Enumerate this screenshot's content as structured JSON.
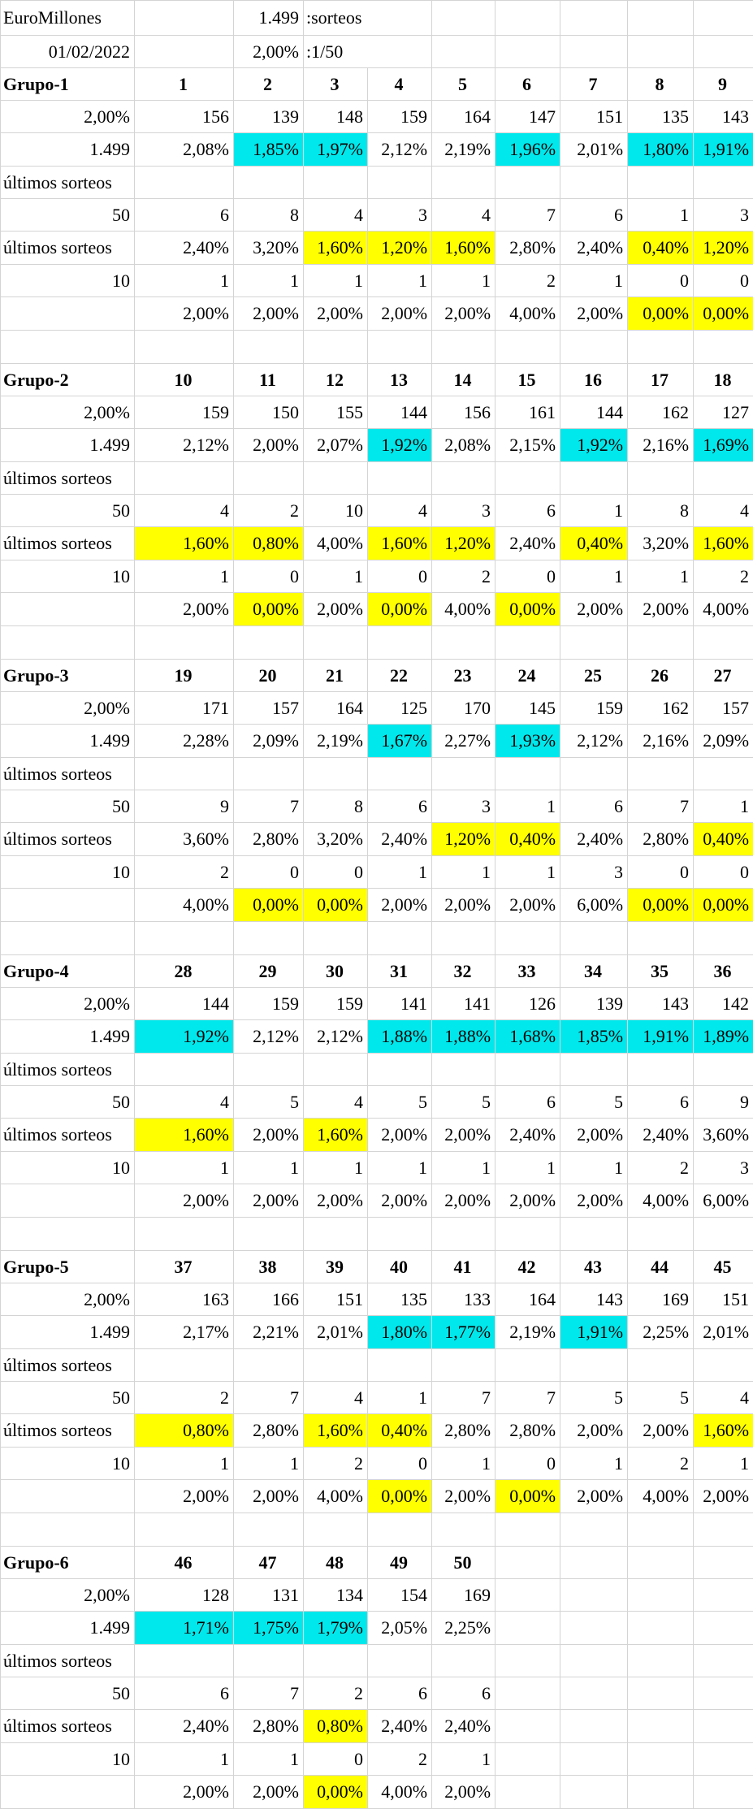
{
  "header": {
    "app_name": "EuroMillones",
    "date": "01/02/2022",
    "draws_count": "1.499",
    "draws_label": ":sorteos",
    "base_pct": "2,00%",
    "ratio_label": ":1/50"
  },
  "labels": {
    "group_prefix": "Grupo-",
    "base_pct": "2,00%",
    "total_draws": "1.499",
    "last_draws": "últimos sorteos",
    "n50": "50",
    "n10": "10"
  },
  "colors": {
    "number_red": "#e00000",
    "highlight_low": "#00e8ec",
    "highlight_zero": "#ffff00"
  },
  "groups": [
    {
      "name": "Grupo-1",
      "numbers": [
        "1",
        "2",
        "3",
        "4",
        "5",
        "6",
        "7",
        "8",
        "9"
      ],
      "counts_total": [
        "156",
        "139",
        "148",
        "159",
        "164",
        "147",
        "151",
        "135",
        "143"
      ],
      "pct_total": [
        "2,08%",
        "1,85%",
        "1,97%",
        "2,12%",
        "2,19%",
        "1,96%",
        "2,01%",
        "1,80%",
        "1,91%"
      ],
      "pct_total_hl": [
        "",
        "c",
        "c",
        "",
        "",
        "c",
        "",
        "c",
        "c"
      ],
      "counts_50": [
        "6",
        "8",
        "4",
        "3",
        "4",
        "7",
        "6",
        "1",
        "3"
      ],
      "pct_50": [
        "2,40%",
        "3,20%",
        "1,60%",
        "1,20%",
        "1,60%",
        "2,80%",
        "2,40%",
        "0,40%",
        "1,20%"
      ],
      "pct_50_hl": [
        "",
        "",
        "y",
        "y",
        "y",
        "",
        "",
        "y",
        "y"
      ],
      "counts_10": [
        "1",
        "1",
        "1",
        "1",
        "1",
        "2",
        "1",
        "0",
        "0"
      ],
      "pct_10": [
        "2,00%",
        "2,00%",
        "2,00%",
        "2,00%",
        "2,00%",
        "4,00%",
        "2,00%",
        "0,00%",
        "0,00%"
      ],
      "pct_10_hl": [
        "",
        "",
        "",
        "",
        "",
        "",
        "",
        "y",
        "y"
      ]
    },
    {
      "name": "Grupo-2",
      "numbers": [
        "10",
        "11",
        "12",
        "13",
        "14",
        "15",
        "16",
        "17",
        "18"
      ],
      "counts_total": [
        "159",
        "150",
        "155",
        "144",
        "156",
        "161",
        "144",
        "162",
        "127"
      ],
      "pct_total": [
        "2,12%",
        "2,00%",
        "2,07%",
        "1,92%",
        "2,08%",
        "2,15%",
        "1,92%",
        "2,16%",
        "1,69%"
      ],
      "pct_total_hl": [
        "",
        "",
        "",
        "c",
        "",
        "",
        "c",
        "",
        "c"
      ],
      "counts_50": [
        "4",
        "2",
        "10",
        "4",
        "3",
        "6",
        "1",
        "8",
        "4"
      ],
      "pct_50": [
        "1,60%",
        "0,80%",
        "4,00%",
        "1,60%",
        "1,20%",
        "2,40%",
        "0,40%",
        "3,20%",
        "1,60%"
      ],
      "pct_50_hl": [
        "y",
        "y",
        "",
        "y",
        "y",
        "",
        "y",
        "",
        "y"
      ],
      "counts_10": [
        "1",
        "0",
        "1",
        "0",
        "2",
        "0",
        "1",
        "1",
        "2"
      ],
      "pct_10": [
        "2,00%",
        "0,00%",
        "2,00%",
        "0,00%",
        "4,00%",
        "0,00%",
        "2,00%",
        "2,00%",
        "4,00%"
      ],
      "pct_10_hl": [
        "",
        "y",
        "",
        "y",
        "",
        "y",
        "",
        "",
        ""
      ]
    },
    {
      "name": "Grupo-3",
      "numbers": [
        "19",
        "20",
        "21",
        "22",
        "23",
        "24",
        "25",
        "26",
        "27"
      ],
      "counts_total": [
        "171",
        "157",
        "164",
        "125",
        "170",
        "145",
        "159",
        "162",
        "157"
      ],
      "pct_total": [
        "2,28%",
        "2,09%",
        "2,19%",
        "1,67%",
        "2,27%",
        "1,93%",
        "2,12%",
        "2,16%",
        "2,09%"
      ],
      "pct_total_hl": [
        "",
        "",
        "",
        "c",
        "",
        "c",
        "",
        "",
        ""
      ],
      "counts_50": [
        "9",
        "7",
        "8",
        "6",
        "3",
        "1",
        "6",
        "7",
        "1"
      ],
      "pct_50": [
        "3,60%",
        "2,80%",
        "3,20%",
        "2,40%",
        "1,20%",
        "0,40%",
        "2,40%",
        "2,80%",
        "0,40%"
      ],
      "pct_50_hl": [
        "",
        "",
        "",
        "",
        "y",
        "y",
        "",
        "",
        "y"
      ],
      "counts_10": [
        "2",
        "0",
        "0",
        "1",
        "1",
        "1",
        "3",
        "0",
        "0"
      ],
      "pct_10": [
        "4,00%",
        "0,00%",
        "0,00%",
        "2,00%",
        "2,00%",
        "2,00%",
        "6,00%",
        "0,00%",
        "0,00%"
      ],
      "pct_10_hl": [
        "",
        "y",
        "y",
        "",
        "",
        "",
        "",
        "y",
        "y"
      ]
    },
    {
      "name": "Grupo-4",
      "numbers": [
        "28",
        "29",
        "30",
        "31",
        "32",
        "33",
        "34",
        "35",
        "36"
      ],
      "counts_total": [
        "144",
        "159",
        "159",
        "141",
        "141",
        "126",
        "139",
        "143",
        "142"
      ],
      "pct_total": [
        "1,92%",
        "2,12%",
        "2,12%",
        "1,88%",
        "1,88%",
        "1,68%",
        "1,85%",
        "1,91%",
        "1,89%"
      ],
      "pct_total_hl": [
        "c",
        "",
        "",
        "c",
        "c",
        "c",
        "c",
        "c",
        "c"
      ],
      "counts_50": [
        "4",
        "5",
        "4",
        "5",
        "5",
        "6",
        "5",
        "6",
        "9"
      ],
      "pct_50": [
        "1,60%",
        "2,00%",
        "1,60%",
        "2,00%",
        "2,00%",
        "2,40%",
        "2,00%",
        "2,40%",
        "3,60%"
      ],
      "pct_50_hl": [
        "y",
        "",
        "y",
        "",
        "",
        "",
        "",
        "",
        ""
      ],
      "counts_10": [
        "1",
        "1",
        "1",
        "1",
        "1",
        "1",
        "1",
        "2",
        "3"
      ],
      "pct_10": [
        "2,00%",
        "2,00%",
        "2,00%",
        "2,00%",
        "2,00%",
        "2,00%",
        "2,00%",
        "4,00%",
        "6,00%"
      ],
      "pct_10_hl": [
        "",
        "",
        "",
        "",
        "",
        "",
        "",
        "",
        ""
      ]
    },
    {
      "name": "Grupo-5",
      "numbers": [
        "37",
        "38",
        "39",
        "40",
        "41",
        "42",
        "43",
        "44",
        "45"
      ],
      "counts_total": [
        "163",
        "166",
        "151",
        "135",
        "133",
        "164",
        "143",
        "169",
        "151"
      ],
      "pct_total": [
        "2,17%",
        "2,21%",
        "2,01%",
        "1,80%",
        "1,77%",
        "2,19%",
        "1,91%",
        "2,25%",
        "2,01%"
      ],
      "pct_total_hl": [
        "",
        "",
        "",
        "c",
        "c",
        "",
        "c",
        "",
        ""
      ],
      "counts_50": [
        "2",
        "7",
        "4",
        "1",
        "7",
        "7",
        "5",
        "5",
        "4"
      ],
      "pct_50": [
        "0,80%",
        "2,80%",
        "1,60%",
        "0,40%",
        "2,80%",
        "2,80%",
        "2,00%",
        "2,00%",
        "1,60%"
      ],
      "pct_50_hl": [
        "y",
        "",
        "y",
        "y",
        "",
        "",
        "",
        "",
        "y"
      ],
      "counts_10": [
        "1",
        "1",
        "2",
        "0",
        "1",
        "0",
        "1",
        "2",
        "1"
      ],
      "pct_10": [
        "2,00%",
        "2,00%",
        "4,00%",
        "0,00%",
        "2,00%",
        "0,00%",
        "2,00%",
        "4,00%",
        "2,00%"
      ],
      "pct_10_hl": [
        "",
        "",
        "",
        "y",
        "",
        "y",
        "",
        "",
        ""
      ]
    },
    {
      "name": "Grupo-6",
      "numbers": [
        "46",
        "47",
        "48",
        "49",
        "50"
      ],
      "counts_total": [
        "128",
        "131",
        "134",
        "154",
        "169"
      ],
      "pct_total": [
        "1,71%",
        "1,75%",
        "1,79%",
        "2,05%",
        "2,25%"
      ],
      "pct_total_hl": [
        "c",
        "c",
        "c",
        "",
        ""
      ],
      "counts_50": [
        "6",
        "7",
        "2",
        "6",
        "6"
      ],
      "pct_50": [
        "2,40%",
        "2,80%",
        "0,80%",
        "2,40%",
        "2,40%"
      ],
      "pct_50_hl": [
        "",
        "",
        "y",
        "",
        ""
      ],
      "counts_10": [
        "1",
        "1",
        "0",
        "2",
        "1"
      ],
      "pct_10": [
        "2,00%",
        "2,00%",
        "0,00%",
        "4,00%",
        "2,00%"
      ],
      "pct_10_hl": [
        "",
        "",
        "y",
        "",
        ""
      ]
    }
  ]
}
